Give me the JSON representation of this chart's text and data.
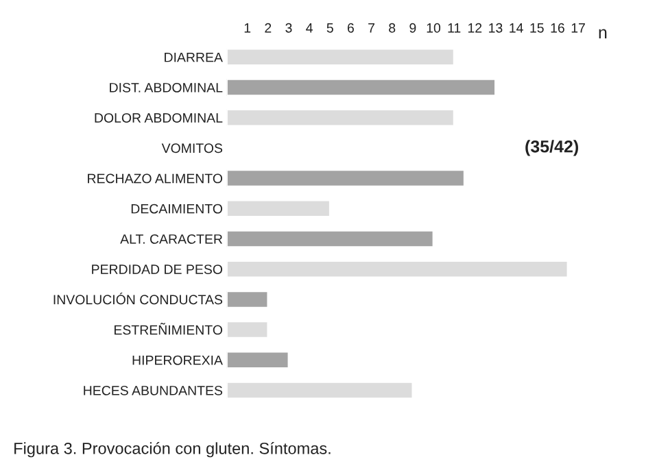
{
  "chart_data": {
    "type": "bar",
    "orientation": "horizontal",
    "categories": [
      "DIARREA",
      "DIST. ABDOMINAL",
      "DOLOR ABDOMINAL",
      "VOMITOS",
      "RECHAZO ALIMENTO",
      "DECAIMIENTO",
      "ALT. CARACTER",
      "PERDIDAD DE PESO",
      "INVOLUCIÓN CONDUCTAS",
      "ESTREÑIMIENTO",
      "HIPEROREXIA",
      "HECES ABUNDANTES"
    ],
    "values": [
      11,
      13,
      11,
      null,
      11.5,
      5,
      10,
      16.5,
      2,
      2,
      3,
      9
    ],
    "colors": [
      "#dcdcdc",
      "#a3a3a3",
      "#dcdcdc",
      null,
      "#a3a3a3",
      "#dcdcdc",
      "#a3a3a3",
      "#dcdcdc",
      "#a3a3a3",
      "#dcdcdc",
      "#a3a3a3",
      "#dcdcdc"
    ],
    "xlim": [
      0,
      17
    ],
    "xticks": [
      1,
      2,
      3,
      4,
      5,
      6,
      7,
      8,
      9,
      10,
      11,
      12,
      13,
      14,
      15,
      16,
      17
    ],
    "xlabel": "n",
    "grid": false,
    "annotations": [
      "(35/42)",
      "Figura 3. Provocación con gluten. Síntomas."
    ]
  }
}
